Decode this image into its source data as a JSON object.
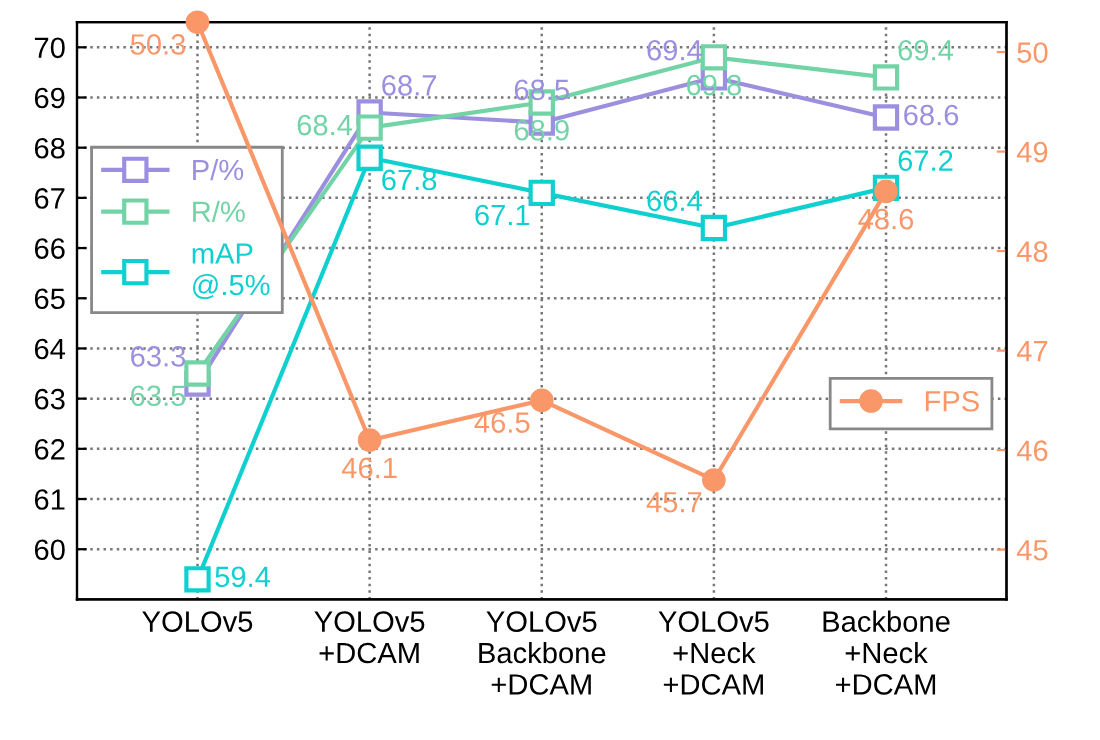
{
  "chart_data": {
    "type": "line",
    "categories": [
      "YOLOv5",
      "YOLOv5\n+DCAM",
      "YOLOv5\nBackbone\n+DCAM",
      "YOLOv5\n+Neck\n+DCAM",
      "Backbone\n+Neck\n+DCAM"
    ],
    "series": [
      {
        "name": "P/%",
        "color": "#9c8fe0",
        "values": [
          63.3,
          68.7,
          68.5,
          69.4,
          68.6
        ],
        "marker": "square"
      },
      {
        "name": "R/%",
        "color": "#72d4a6",
        "values": [
          63.5,
          68.4,
          68.9,
          69.8,
          69.4
        ],
        "marker": "square"
      },
      {
        "name": "mAP\n@.5%",
        "color": "#0fcfcf",
        "values": [
          59.4,
          67.8,
          67.1,
          66.4,
          67.2
        ],
        "marker": "square"
      },
      {
        "name": "FPS",
        "color": "#f99768",
        "values": [
          50.3,
          46.1,
          46.5,
          45.7,
          48.6
        ],
        "marker": "circle",
        "axis": "y2"
      }
    ],
    "ylim": [
      59,
      70.5
    ],
    "yticks": [
      60,
      61,
      62,
      63,
      64,
      65,
      66,
      67,
      68,
      69,
      70
    ],
    "y2lim": [
      44.5,
      50.3
    ],
    "y2ticks": [
      45,
      46,
      47,
      48,
      49,
      50
    ],
    "grid": true,
    "data_labels": true,
    "legend": "left"
  }
}
